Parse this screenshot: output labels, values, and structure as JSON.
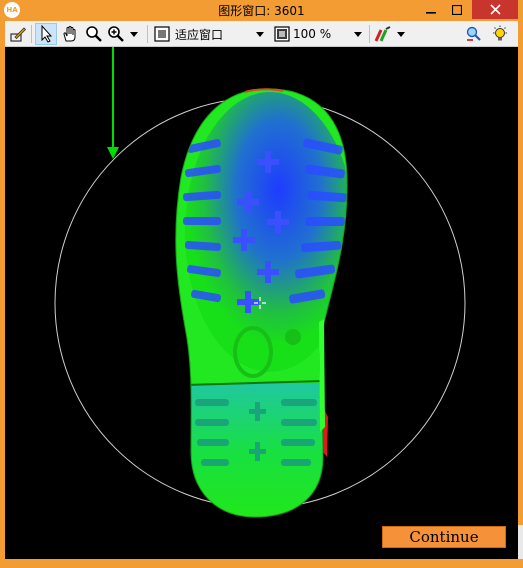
{
  "window": {
    "title": "图形窗口: 3601",
    "app_icon_text": "HA",
    "accent_color": "#f39c33",
    "close_color": "#c7352d"
  },
  "toolbar": {
    "fit_window_label": "适应窗口",
    "zoom_value": "100 %",
    "icons": [
      "edit-icon",
      "pointer-icon",
      "pan-hand-icon",
      "magnifier-icon",
      "zoom-icon",
      "dropdown-arrow-icon",
      "fit-window-icon",
      "zoom-percent-icon",
      "color-tools-icon",
      "inspect-icon",
      "settings-lightbulb-icon"
    ]
  },
  "canvas": {
    "background": "#000000",
    "overlay_color": "#00dd00"
  },
  "actions": {
    "continue_label": "Continue"
  }
}
